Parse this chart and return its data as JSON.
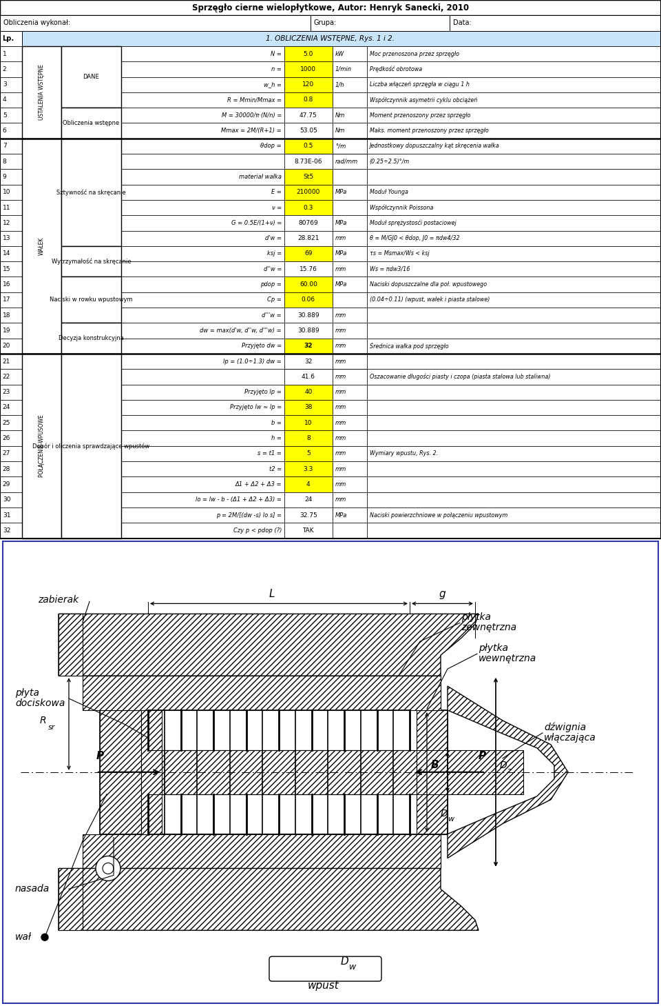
{
  "title": "Sprzęgło cierne wielopłytkowe, Autor: Henryk Sanecki, 2010",
  "header_row": [
    "Obliczenia wykonał:",
    "Grupa:",
    "Data:"
  ],
  "section_header": "1. OBLICZENIA WSTĘPNE, Rys. 1 i 2.",
  "bg_yellow": "#ffff00",
  "bg_white": "#ffffff",
  "bg_blue": "#d0e8f8",
  "rows": [
    {
      "lp": "1",
      "col1": "USTALENIA WSTĘPNE",
      "col2": "DANE",
      "formula": "N =",
      "value": "5.0",
      "unit": "kW",
      "description": "Moc przenoszona przez sprzęgło",
      "yellow": true
    },
    {
      "lp": "2",
      "col1": "USTALENIA WSTĘPNE",
      "col2": "DANE",
      "formula": "n =",
      "value": "1000",
      "unit": "1/min",
      "description": "Prędkość obrotowa",
      "yellow": true
    },
    {
      "lp": "3",
      "col1": "USTALENIA WSTĘPNE",
      "col2": "DANE",
      "formula": "w_h =",
      "value": "120",
      "unit": "1/h",
      "description": "Liczba włączeń sprzęgła w ciągu 1 h",
      "yellow": true
    },
    {
      "lp": "4",
      "col1": "USTALENIA WSTĘPNE",
      "col2": "DANE",
      "formula": "R = Mmin/Mmax =",
      "value": "0.8",
      "unit": "",
      "description": "Współczynnik asymetrii cyklu obciążeń",
      "yellow": true
    },
    {
      "lp": "5",
      "col1": "USTALENIA WSTĘPNE",
      "col2": "Obliczenia wstępne",
      "formula": "M = 30000/π·(N/n) =",
      "value": "47.75",
      "unit": "Nm",
      "description": "Moment przenoszony przez sprzęgło",
      "yellow": false
    },
    {
      "lp": "6",
      "col1": "USTALENIA WSTĘPNE",
      "col2": "Obliczenia wstępne",
      "formula": "Mmax = 2M/(R+1) =",
      "value": "53.05",
      "unit": "Nm",
      "description": "Maks. moment przenoszony przez sprzęgło",
      "yellow": false
    },
    {
      "lp": "7",
      "col1": "WAŁEK",
      "col2": "Sztywność na skręcanie",
      "formula": "θdop =",
      "value": "0.5",
      "unit": "°/m",
      "description": "Jednostkowy dopuszczalny kąt skręcenia wałka",
      "yellow": true
    },
    {
      "lp": "8",
      "col1": "WAŁEK",
      "col2": "Sztywność na skręcanie",
      "formula": "",
      "value": "8.73E-06",
      "unit": "rad/mm",
      "description": "(0.25÷2.5)°/m",
      "yellow": false
    },
    {
      "lp": "9",
      "col1": "WAŁEK",
      "col2": "Sztywność na skręcanie",
      "formula": "materiał wałka",
      "value": "St5",
      "unit": "",
      "description": "",
      "yellow": true
    },
    {
      "lp": "10",
      "col1": "WAŁEK",
      "col2": "Sztywność na skręcanie",
      "formula": "E =",
      "value": "210000",
      "unit": "MPa",
      "description": "Moduł Younga",
      "yellow": true
    },
    {
      "lp": "11",
      "col1": "WAŁEK",
      "col2": "Sztywność na skręcanie",
      "formula": "ν =",
      "value": "0.3",
      "unit": "",
      "description": "Współczynnik Poissona",
      "yellow": true
    },
    {
      "lp": "12",
      "col1": "WAŁEK",
      "col2": "Sztywność na skręcanie",
      "formula": "G = 0.5E/(1+ν) =",
      "value": "80769",
      "unit": "MPa",
      "description": "Moduł sprężystosći postaciowej",
      "yellow": false
    },
    {
      "lp": "13",
      "col1": "WAŁEK",
      "col2": "Sztywność na skręcanie",
      "formula": "d'w =",
      "value": "28.821",
      "unit": "mm",
      "description": "θ = M/GJ0 < θdop, J0 = πdw4/32",
      "yellow": false
    },
    {
      "lp": "14",
      "col1": "WAŁEK",
      "col2": "Wytrzymałość na skręcanie",
      "formula": "ksj =",
      "value": "69",
      "unit": "MPa",
      "description": "τs = Msmax/Ws < ksj",
      "yellow": true
    },
    {
      "lp": "15",
      "col1": "WAŁEK",
      "col2": "Wytrzymałość na skręcanie",
      "formula": "d''w =",
      "value": "15.76",
      "unit": "mm",
      "description": "Ws = πdw3/16",
      "yellow": false
    },
    {
      "lp": "16",
      "col1": "WAŁEK",
      "col2": "Naciski w rowku wpustowym",
      "formula": "pdop =",
      "value": "60.00",
      "unit": "MPa",
      "description": "Naciski dopuszczalne dla poł. wpustowego",
      "yellow": true
    },
    {
      "lp": "17",
      "col1": "WAŁEK",
      "col2": "Naciski w rowku wpustowym",
      "formula": "Cp =",
      "value": "0.06",
      "unit": "",
      "description": "(0.04÷0.11) (wpust, wałek i piasta stalowe)",
      "yellow": true
    },
    {
      "lp": "18",
      "col1": "WAŁEK",
      "col2": "Naciski w rowku wpustowym",
      "formula": "d'''w =",
      "value": "30.889",
      "unit": "mm",
      "description": "",
      "yellow": false
    },
    {
      "lp": "19",
      "col1": "WAŁEK",
      "col2": "Decyzja konstrukcyjna",
      "formula": "dw = max(d'w, d''w, d'''w) =",
      "value": "30.889",
      "unit": "mm",
      "description": "",
      "yellow": false
    },
    {
      "lp": "20",
      "col1": "WAŁEK",
      "col2": "Decyzja konstrukcyjna",
      "formula": "Przyjęto dw =",
      "value": "32",
      "unit": "mm",
      "description": "Średnica wałka pod sprzęgło",
      "yellow": true
    },
    {
      "lp": "21",
      "col1": "POŁĄCZENIE WPUSOWE",
      "col2": "Dobór i oliczenia sprawdzające wpustów",
      "formula": "lp = (1.0÷1.3) dw =",
      "value": "32",
      "unit": "mm",
      "description": "",
      "yellow": false
    },
    {
      "lp": "22",
      "col1": "POŁĄCZENIE WPUSOWE",
      "col2": "Dobór i oliczenia sprawdzające wpustów",
      "formula": "",
      "value": "41.6",
      "unit": "mm",
      "description": "Oszacowanie długości piasty i czopa (piasta stalowa lub staliwna)",
      "yellow": false
    },
    {
      "lp": "23",
      "col1": "POŁĄCZENIE WPUSOWE",
      "col2": "Dobór i oliczenia sprawdzające wpustów",
      "formula": "Przyjęto lp =",
      "value": "40",
      "unit": "mm",
      "description": "",
      "yellow": true
    },
    {
      "lp": "24",
      "col1": "POŁĄCZENIE WPUSOWE",
      "col2": "Dobór i oliczenia sprawdzające wpustów",
      "formula": "Przyjęto lw ≈ lp =",
      "value": "38",
      "unit": "mm",
      "description": "",
      "yellow": true
    },
    {
      "lp": "25",
      "col1": "POŁĄCZENIE WPUSOWE",
      "col2": "Dobór i oliczenia sprawdzające wpustów",
      "formula": "b =",
      "value": "10",
      "unit": "mm",
      "description": "",
      "yellow": true
    },
    {
      "lp": "26",
      "col1": "POŁĄCZENIE WPUSOWE",
      "col2": "Dobór i oliczenia sprawdzające wpustów",
      "formula": "h =",
      "value": "8",
      "unit": "mm",
      "description": "",
      "yellow": true
    },
    {
      "lp": "27",
      "col1": "POŁĄCZENIE WPUSOWE",
      "col2": "Dobór i oliczenia sprawdzające wpustów",
      "formula": "s = t1 =",
      "value": "5",
      "unit": "mm",
      "description": "Wymiary wpustu, Rys. 2.",
      "yellow": true
    },
    {
      "lp": "28",
      "col1": "POŁĄCZENIE WPUSOWE",
      "col2": "Dobór i oliczenia sprawdzające wpustów",
      "formula": "t2 =",
      "value": "3.3",
      "unit": "mm",
      "description": "",
      "yellow": true
    },
    {
      "lp": "29",
      "col1": "POŁĄCZENIE WPUSOWE",
      "col2": "Dobór i oliczenia sprawdzające wpustów",
      "formula": "Δ1 + Δ2 + Δ3 =",
      "value": "4",
      "unit": "mm",
      "description": "",
      "yellow": true
    },
    {
      "lp": "30",
      "col1": "POŁĄCZENIE WPUSOWE",
      "col2": "Dobór i oliczenia sprawdzające wpustów",
      "formula": "lo = lw - b - (Δ1 + Δ2 + Δ3) =",
      "value": "24",
      "unit": "mm",
      "description": "",
      "yellow": false
    },
    {
      "lp": "31",
      "col1": "POŁĄCZENIE WPUSOWE",
      "col2": "Dobór i oliczenia sprawdzające wpustów",
      "formula": "p = 2M/[(dw -s) lo s] =",
      "value": "32.75",
      "unit": "MPa",
      "description": "Naciski powierzchniowe w połączeniu wpustowym",
      "yellow": false
    },
    {
      "lp": "32",
      "col1": "POŁĄCZENIE WPUSOWE",
      "col2": "Dobór i oliczenia sprawdzające wpustów",
      "formula": "Czy p < pdop (?)",
      "value": "TAK",
      "unit": "",
      "description": "",
      "yellow": false
    }
  ]
}
